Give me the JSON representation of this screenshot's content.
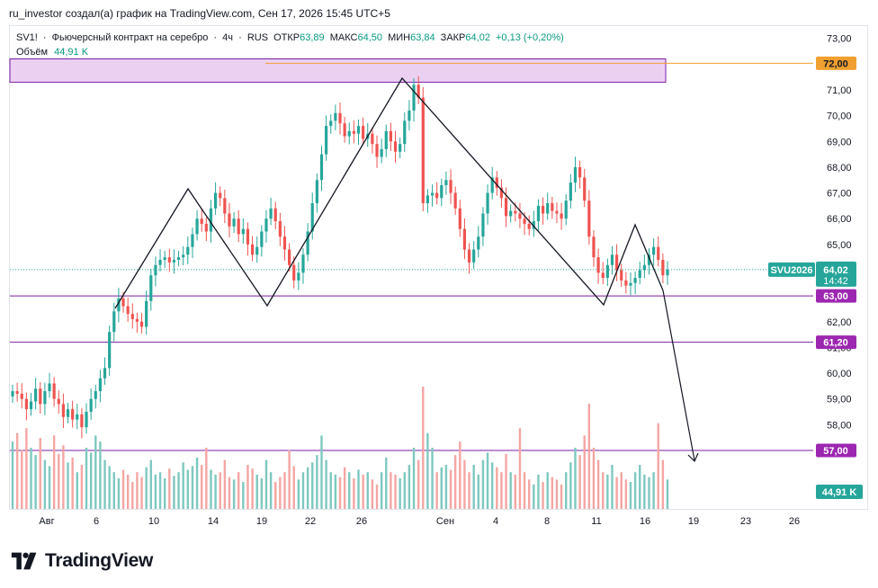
{
  "caption": "ru_investor создал(а) график на TradingView.com, Сен 17, 2026 15:45 UTC+5",
  "legend": {
    "symbol": "SV1!",
    "sep1": "·",
    "name": "Фьючерсный контракт на серебро",
    "sep2": "·",
    "timeframe": "4ч",
    "sep3": "·",
    "exchange": "RUS",
    "open_label": "ОТКР",
    "open": "63,89",
    "high_label": "МАКС",
    "high": "64,50",
    "low_label": "МИН",
    "low": "63,84",
    "close_label": "ЗАКР",
    "close": "64,02",
    "change": "+0,13 (+0,20%)"
  },
  "volume_legend": {
    "label": "Объём",
    "value": "44,91 K"
  },
  "price_tags": {
    "symbol_tag": "SVU2026",
    "last_price": "64,02",
    "countdown": "14:42",
    "level_72": "72,00",
    "level_63": "63,00",
    "level_61": "61,20",
    "level_57": "57,00",
    "volume_value": "44,91 K"
  },
  "footer": {
    "brand": "TradingView"
  },
  "colors": {
    "up": "#26a69a",
    "down": "#ef5350",
    "vol_up": "#7ec8c0",
    "vol_down": "#f4a6a3",
    "level_line": "#7b1fa2",
    "level_tag": "#9c27b0",
    "orange": "#f0a030",
    "zone_fill": "#e8c8f0"
  },
  "chart_data": {
    "type": "candlestick",
    "y_axis_ticks": [
      "73,00",
      "72,00",
      "71,00",
      "70,00",
      "69,00",
      "68,00",
      "67,00",
      "66,00",
      "65,00",
      "64,00",
      "63,00",
      "62,00",
      "61,00",
      "60,00",
      "59,00",
      "58,00",
      "57,00"
    ],
    "x_axis_ticks": [
      "Авг",
      "6",
      "10",
      "14",
      "19",
      "22",
      "26",
      "Сен",
      "4",
      "8",
      "11",
      "16",
      "19",
      "23",
      "26"
    ],
    "ylim": [
      56.3,
      73.2
    ],
    "levels": [
      72.0,
      63.0,
      61.2,
      57.0
    ],
    "zone": {
      "from": 71.3,
      "to": 72.1
    },
    "pattern_points": [
      [
        62.6,
        63.3
      ],
      [
        63.8,
        67.3
      ],
      [
        64.5,
        63.0
      ],
      [
        65.1,
        71.4
      ],
      [
        66.0,
        63.0
      ],
      [
        66.5,
        66.0
      ],
      [
        66.8,
        63.0
      ]
    ],
    "close_path": [
      59.3,
      59.2,
      59.0,
      58.6,
      58.9,
      59.4,
      58.8,
      59.3,
      59.6,
      59.0,
      58.8,
      58.3,
      58.6,
      58.2,
      58.4,
      57.9,
      58.5,
      59.0,
      59.3,
      59.8,
      60.2,
      61.6,
      62.4,
      62.9,
      62.6,
      62.3,
      62.1,
      62.0,
      61.8,
      62.8,
      63.8,
      64.2,
      64.4,
      64.5,
      64.3,
      64.4,
      64.5,
      64.6,
      64.9,
      65.4,
      66.0,
      65.8,
      65.5,
      66.4,
      67.0,
      66.8,
      66.2,
      65.7,
      66.0,
      65.4,
      65.6,
      65.0,
      64.6,
      64.9,
      65.5,
      66.0,
      66.4,
      65.9,
      65.3,
      64.8,
      64.2,
      63.6,
      63.9,
      64.6,
      65.5,
      66.6,
      67.5,
      68.5,
      69.6,
      69.8,
      70.1,
      69.7,
      69.2,
      69.4,
      69.3,
      69.6,
      69.1,
      69.3,
      68.9,
      68.4,
      68.7,
      69.4,
      69.0,
      68.6,
      68.9,
      69.8,
      70.2,
      71.2,
      70.7,
      66.6,
      66.9,
      67.0,
      66.8,
      67.3,
      67.5,
      67.0,
      66.4,
      65.6,
      64.8,
      64.3,
      64.8,
      65.3,
      66.2,
      67.0,
      67.6,
      67.2,
      66.8,
      66.1,
      66.3,
      66.2,
      66.0,
      65.8,
      65.6,
      65.9,
      66.5,
      66.2,
      66.6,
      66.3,
      66.2,
      66.0,
      66.7,
      67.4,
      68.0,
      67.6,
      66.7,
      65.3,
      64.5,
      63.9,
      63.7,
      64.2,
      64.6,
      64.0,
      63.6,
      63.4,
      63.5,
      63.7,
      64.0,
      64.2,
      64.6,
      64.9,
      64.4,
      63.8,
      64.02
    ],
    "volume_path": [
      0.55,
      0.62,
      0.48,
      0.66,
      0.5,
      0.44,
      0.58,
      0.4,
      0.35,
      0.6,
      0.45,
      0.52,
      0.38,
      0.42,
      0.3,
      0.36,
      0.5,
      0.46,
      0.6,
      0.55,
      0.4,
      0.35,
      0.3,
      0.25,
      0.32,
      0.28,
      0.22,
      0.3,
      0.26,
      0.34,
      0.4,
      0.28,
      0.3,
      0.25,
      0.33,
      0.27,
      0.3,
      0.38,
      0.32,
      0.35,
      0.42,
      0.36,
      0.5,
      0.32,
      0.28,
      0.3,
      0.4,
      0.26,
      0.24,
      0.3,
      0.22,
      0.36,
      0.33,
      0.28,
      0.25,
      0.4,
      0.3,
      0.22,
      0.26,
      0.3,
      0.48,
      0.35,
      0.24,
      0.3,
      0.34,
      0.38,
      0.44,
      0.6,
      0.4,
      0.3,
      0.28,
      0.26,
      0.34,
      0.3,
      0.25,
      0.32,
      0.28,
      0.3,
      0.24,
      0.2,
      0.3,
      0.42,
      0.3,
      0.28,
      0.25,
      0.3,
      0.36,
      0.5,
      0.4,
      1.0,
      0.62,
      0.5,
      0.3,
      0.34,
      0.36,
      0.32,
      0.44,
      0.55,
      0.4,
      0.3,
      0.36,
      0.28,
      0.4,
      0.46,
      0.38,
      0.34,
      0.3,
      0.45,
      0.3,
      0.28,
      0.66,
      0.3,
      0.24,
      0.2,
      0.28,
      0.22,
      0.3,
      0.26,
      0.24,
      0.2,
      0.3,
      0.38,
      0.5,
      0.44,
      0.6,
      0.86,
      0.5,
      0.4,
      0.3,
      0.28,
      0.36,
      0.26,
      0.3,
      0.24,
      0.22,
      0.3,
      0.36,
      0.28,
      0.26,
      0.3,
      0.7,
      0.4,
      0.24
    ]
  }
}
